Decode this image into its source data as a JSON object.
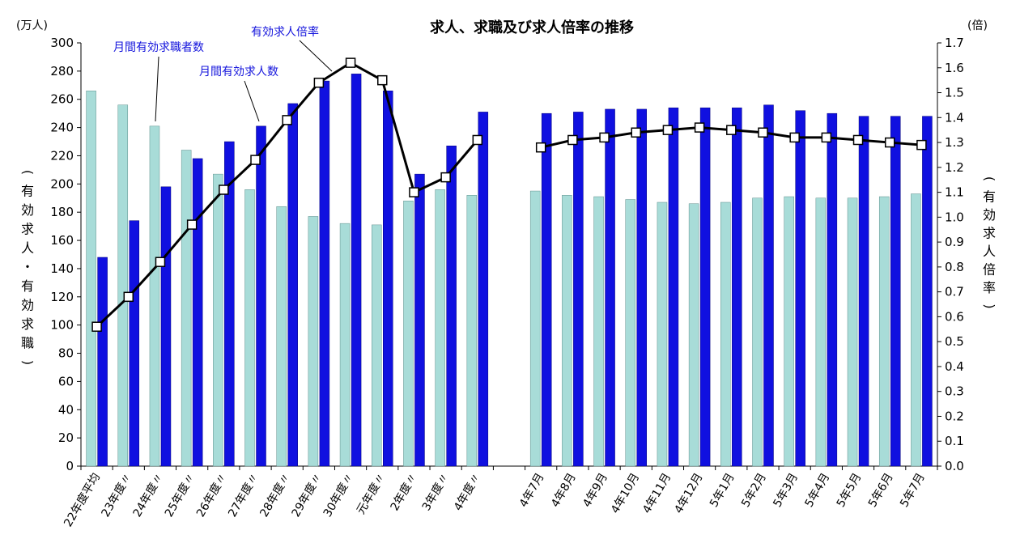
{
  "chart_data": {
    "type": "bar",
    "title": "求人、求職及び求人倍率の推移",
    "left_unit": "(万人)",
    "right_unit": "(倍)",
    "ylabel_left": "(有効求人・有効求職)",
    "ylabel_right": "(有効求人倍率)",
    "ylim_left": [
      0,
      300
    ],
    "yticks_left": [
      "0",
      "20",
      "40",
      "60",
      "80",
      "100",
      "120",
      "140",
      "160",
      "180",
      "200",
      "220",
      "240",
      "260",
      "280",
      "300"
    ],
    "ylim_right": [
      0,
      1.7
    ],
    "yticks_right": [
      "0.0",
      "0.1",
      "0.2",
      "0.3",
      "0.4",
      "0.5",
      "0.6",
      "0.7",
      "0.8",
      "0.9",
      "1.0",
      "1.1",
      "1.2",
      "1.3",
      "1.4",
      "1.5",
      "1.6",
      "1.7"
    ],
    "categories": [
      "22年度平均",
      "23年度〃",
      "24年度〃",
      "25年度〃",
      "26年度〃",
      "27年度〃",
      "28年度〃",
      "29年度〃",
      "30年度〃",
      "元年度〃",
      "2年度〃",
      "3年度〃",
      "4年度〃",
      "",
      "4年7月",
      "4年8月",
      "4年9月",
      "4年10月",
      "4年11月",
      "4年12月",
      "5年1月",
      "5年2月",
      "5年3月",
      "5年4月",
      "5年5月",
      "5年6月",
      "5年7月"
    ],
    "series": [
      {
        "name": "月間有効求職者数",
        "axis": "left",
        "color": "#a8dcd8",
        "values": [
          266,
          256,
          241,
          224,
          207,
          196,
          184,
          177,
          172,
          171,
          188,
          196,
          192,
          null,
          195,
          192,
          191,
          189,
          187,
          186,
          187,
          190,
          191,
          190,
          190,
          191,
          193
        ]
      },
      {
        "name": "月間有効求人数",
        "axis": "left",
        "color": "#1010e0",
        "values": [
          148,
          174,
          198,
          218,
          230,
          241,
          257,
          273,
          278,
          266,
          207,
          227,
          251,
          null,
          250,
          251,
          253,
          253,
          254,
          254,
          254,
          256,
          252,
          250,
          248,
          248,
          248
        ]
      },
      {
        "name": "有効求人倍率",
        "axis": "right",
        "type": "line",
        "color": "#000000",
        "values": [
          0.56,
          0.68,
          0.82,
          0.97,
          1.11,
          1.23,
          1.39,
          1.54,
          1.62,
          1.55,
          1.1,
          1.16,
          1.31,
          null,
          1.28,
          1.31,
          1.32,
          1.34,
          1.35,
          1.36,
          1.35,
          1.34,
          1.32,
          1.32,
          1.31,
          1.3,
          1.29
        ]
      }
    ]
  }
}
